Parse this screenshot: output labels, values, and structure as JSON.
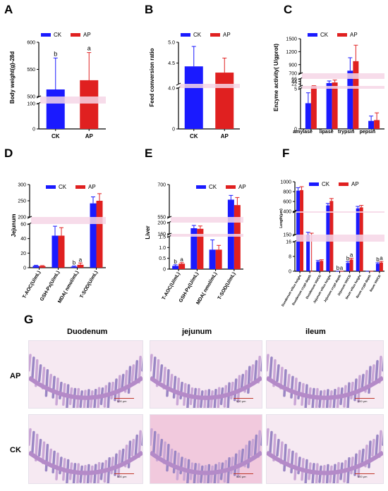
{
  "colors": {
    "ck": "#1a1aff",
    "ap": "#e02020",
    "ap_dark": "#8b1a1a",
    "axis": "#000000"
  },
  "panels": [
    "A",
    "B",
    "C",
    "D",
    "E",
    "F",
    "G"
  ],
  "chart_data": [
    {
      "id": "A",
      "type": "bar",
      "categories": [
        "CK",
        "AP"
      ],
      "values": [
        513,
        530
      ],
      "errors_up": [
        571,
        581
      ],
      "sig": [
        "b",
        "a"
      ],
      "ylabel": "Body weight(g)-28d",
      "legend": [
        "CK",
        "AP"
      ],
      "axis": {
        "lower": [
          0,
          100
        ],
        "upper": [
          500,
          600
        ],
        "ticks": [
          "0",
          "100",
          "500",
          "550",
          "600"
        ]
      }
    },
    {
      "id": "B",
      "type": "bar",
      "categories": [
        "CK",
        "AP"
      ],
      "values": [
        4.42,
        4.27
      ],
      "errors_up": [
        4.9,
        4.62
      ],
      "ylabel": "Feed conversion ratio",
      "legend": [
        "CK",
        "AP"
      ],
      "axis": {
        "lower": [
          0,
          4.0
        ],
        "upper": [
          4.0,
          5.0
        ],
        "ticks": [
          "0",
          "4.0",
          "4.5",
          "5.0"
        ]
      }
    },
    {
      "id": "C",
      "type": "bar",
      "categories": [
        "amylase",
        "lipase",
        "trypsin",
        "pepsin"
      ],
      "series": [
        {
          "name": "CK",
          "values": [
            3.2,
            30,
            760,
            1.0
          ]
        },
        {
          "name": "AP",
          "values": [
            5.5,
            35,
            980,
            1.1
          ]
        }
      ],
      "errors_up": [
        [
          4.5,
          48,
          1060,
          1.6
        ],
        [
          7.0,
          56,
          1350,
          2.0
        ]
      ],
      "ylabel": "Enzyme activity( U/gprot)",
      "legend": [
        "CK",
        "AP"
      ],
      "axis": {
        "ticks": [
          "0",
          "5",
          "22",
          "44",
          "66",
          "700",
          "900",
          "1200",
          "1500"
        ]
      }
    },
    {
      "id": "D",
      "type": "bar",
      "categories": [
        "T-AOC(U/mL)",
        "GSH-Px(U/mL)",
        "MDA( nmol/mL)",
        "T-SOD(U/mL)"
      ],
      "series": [
        {
          "name": "CK",
          "values": [
            2.5,
            44,
            1.5,
            242
          ]
        },
        {
          "name": "AP",
          "values": [
            2.2,
            44,
            4.0,
            250
          ]
        }
      ],
      "errors_up": [
        [
          3.3,
          57,
          2.3,
          262
        ],
        [
          2.9,
          55,
          6.5,
          272
        ]
      ],
      "sig": [
        [
          "",
          ""
        ],
        [
          "",
          ""
        ],
        [
          "b",
          "a"
        ],
        [
          "",
          ""
        ]
      ],
      "ylabel": "Jejunum",
      "legend": [
        "CK",
        "AP"
      ],
      "axis": {
        "ticks": [
          "0",
          "20",
          "40",
          "60",
          "200",
          "250",
          "300"
        ]
      }
    },
    {
      "id": "E",
      "type": "bar",
      "categories": [
        "T-AOC(U/mL)",
        "GSH-Px(U/mL)",
        "MDA( nmol/mL)",
        "T-SOD(U/mL)"
      ],
      "series": [
        {
          "name": "CK",
          "values": [
            0.15,
            180,
            0.9,
            630
          ]
        },
        {
          "name": "AP",
          "values": [
            0.25,
            178,
            0.9,
            605
          ]
        }
      ],
      "errors_up": [
        [
          0.2,
          190,
          1.35,
          650
        ],
        [
          0.3,
          188,
          1.1,
          640
        ]
      ],
      "sig": [
        [
          "b",
          "a"
        ],
        [
          "",
          ""
        ],
        [
          "",
          ""
        ],
        [
          "",
          ""
        ]
      ],
      "ylabel": "Liver",
      "legend": [
        "CK",
        "AP"
      ],
      "axis": {
        "ticks": [
          "0",
          "0.5",
          "1.0",
          "1.5",
          "160",
          "200",
          "550",
          "700"
        ]
      }
    },
    {
      "id": "F",
      "type": "bar",
      "categories": [
        "Duodenum villus height",
        "Duodenum crypt depth",
        "Duodenum VH/CD",
        "Jejunum villus height",
        "Jejunum crypt depth",
        "Jejunum VH/CD",
        "Ileum villus height",
        "Ileum crypt depth",
        "Ileum VH/CD"
      ],
      "series": [
        {
          "name": "CK",
          "values": [
            820,
            150,
            5.2,
            520,
            120,
            4.5,
            460,
            115,
            4.1
          ]
        },
        {
          "name": "AP",
          "values": [
            830,
            145,
            5.6,
            610,
            100,
            6.3,
            480,
            110,
            4.7
          ]
        }
      ],
      "errors_up": [
        [
          880,
          175,
          5.8,
          560,
          135,
          5.2,
          500,
          135,
          4.6
        ],
        [
          900,
          165,
          6.2,
          660,
          115,
          7.0,
          520,
          125,
          5.3
        ]
      ],
      "sig": [
        [
          "",
          ""
        ],
        [
          "",
          ""
        ],
        [
          "",
          ""
        ],
        [
          "",
          ""
        ],
        [
          "b",
          "a"
        ],
        [
          "b",
          "a"
        ],
        [
          "",
          ""
        ],
        [
          "",
          ""
        ],
        [
          "b",
          "a"
        ]
      ],
      "ylabel": "Length(μm)",
      "legend": [
        "CK",
        "AP"
      ],
      "axis": {
        "ticks": [
          "0",
          "8",
          "16",
          "150",
          "400",
          "600",
          "800",
          "1000"
        ]
      }
    }
  ],
  "histology": {
    "columns": [
      "Duodenum",
      "jejunum",
      "ileum"
    ],
    "rows": [
      "AP",
      "CK"
    ],
    "scale_label": "500 μm"
  }
}
